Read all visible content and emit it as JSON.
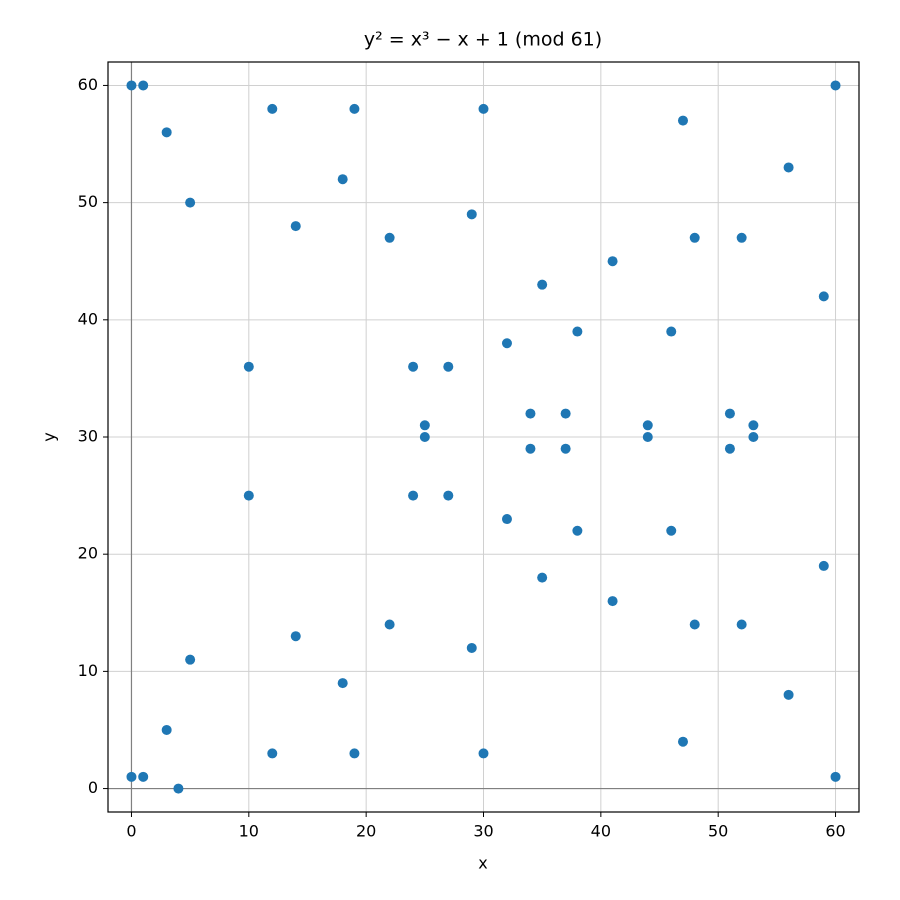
{
  "chart_data": {
    "type": "scatter",
    "title": "y² = x³ − x + 1 (mod 61)",
    "x_label": "x",
    "y_label": "y",
    "x": [
      0,
      0,
      1,
      1,
      3,
      3,
      4,
      5,
      5,
      10,
      10,
      12,
      12,
      14,
      14,
      18,
      18,
      19,
      19,
      22,
      22,
      24,
      24,
      25,
      25,
      27,
      27,
      29,
      29,
      30,
      30,
      32,
      32,
      34,
      34,
      35,
      35,
      37,
      37,
      38,
      38,
      41,
      41,
      44,
      44,
      46,
      46,
      47,
      47,
      48,
      48,
      51,
      51,
      52,
      52,
      53,
      53,
      56,
      56,
      59,
      59,
      60,
      60
    ],
    "values": [
      1,
      60,
      1,
      60,
      5,
      56,
      0,
      11,
      50,
      25,
      36,
      3,
      58,
      13,
      48,
      9,
      52,
      3,
      58,
      14,
      47,
      25,
      36,
      30,
      31,
      25,
      36,
      12,
      49,
      3,
      58,
      23,
      38,
      29,
      32,
      18,
      43,
      29,
      32,
      22,
      39,
      16,
      45,
      30,
      31,
      22,
      39,
      4,
      57,
      14,
      47,
      29,
      32,
      14,
      47,
      30,
      31,
      8,
      53,
      19,
      42,
      1,
      60
    ],
    "color": "#1f77b4",
    "xlim": [
      -2,
      62
    ],
    "ylim": [
      -2,
      62
    ],
    "xticks": [
      0,
      10,
      20,
      30,
      40,
      50,
      60
    ],
    "yticks": [
      0,
      10,
      20,
      30,
      40,
      50,
      60
    ],
    "grid": true,
    "zero_lines": true
  }
}
